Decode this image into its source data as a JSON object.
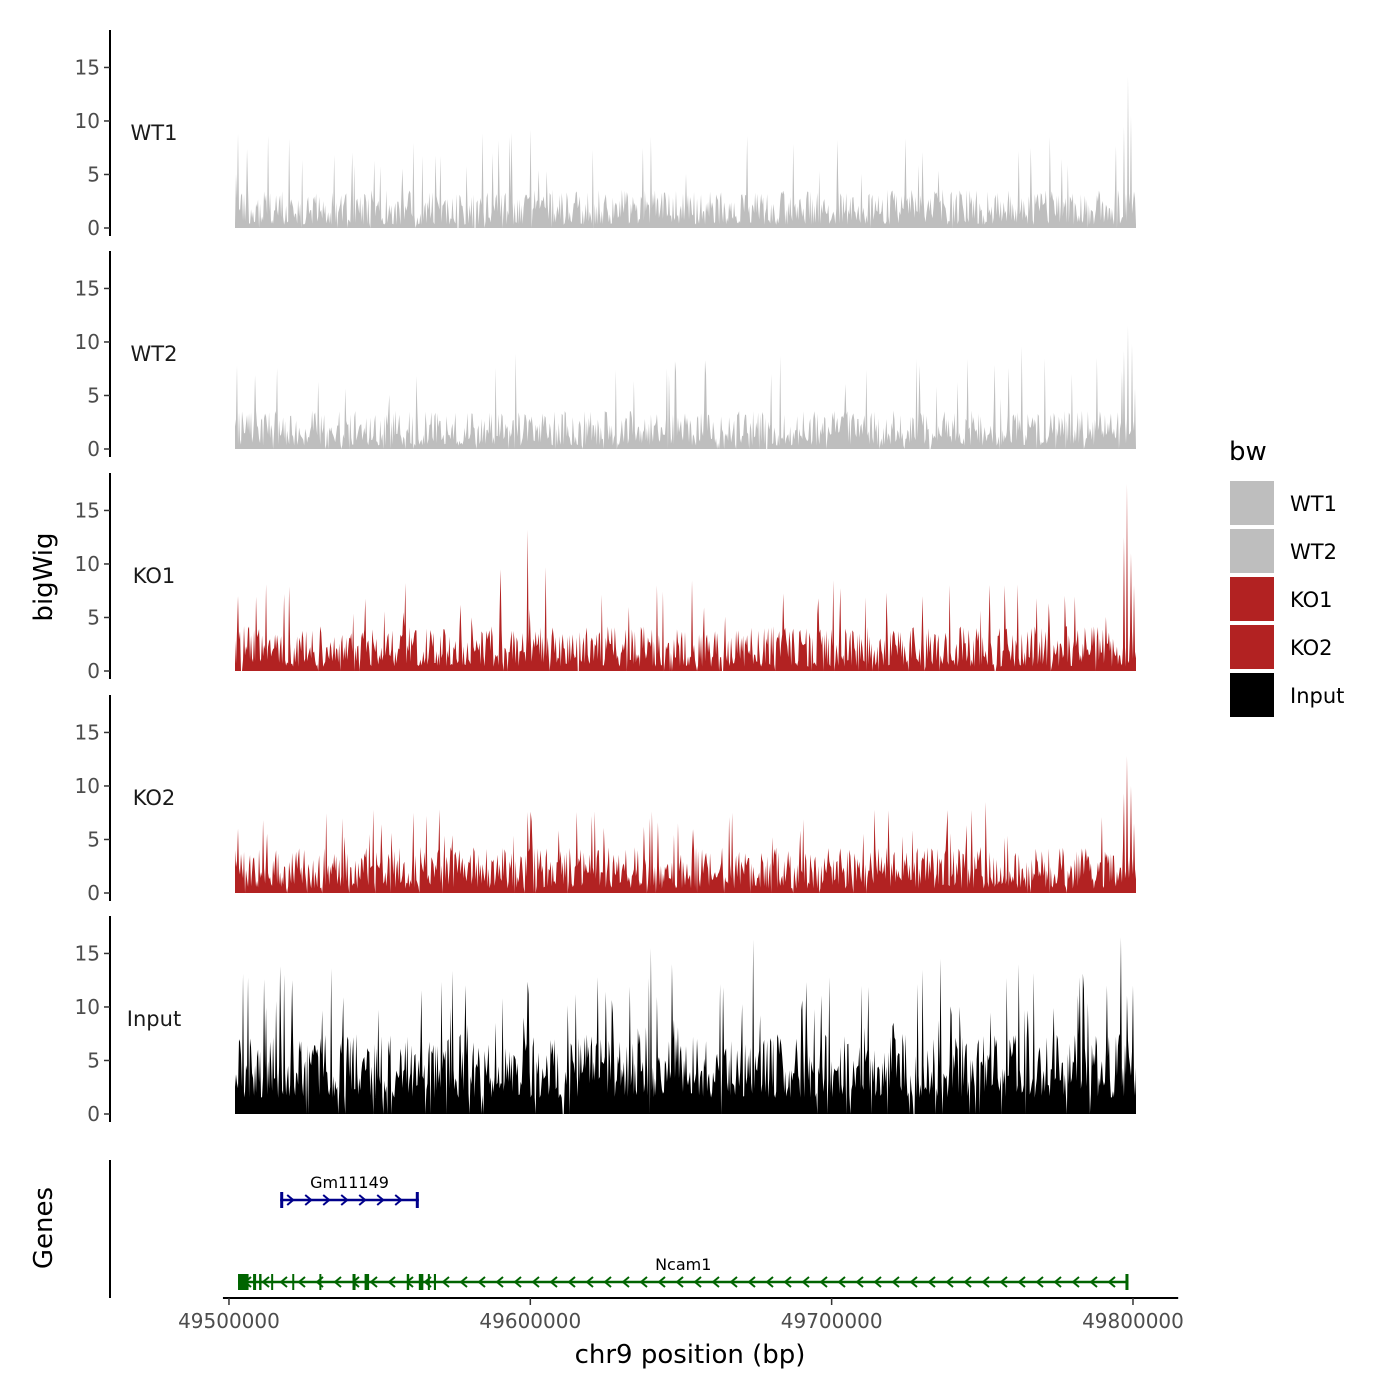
{
  "chart_data": {
    "type": "area",
    "title": "",
    "xlabel": "chr9 position (bp)",
    "ylabel": "bigWig",
    "genes_label": "Genes",
    "xlim": [
      49498000,
      49815000
    ],
    "x_ticks": [
      49500000,
      49600000,
      49700000,
      49800000
    ],
    "x_tick_labels": [
      "49500000",
      "49600000",
      "49700000",
      "49800000"
    ],
    "ylim": [
      0,
      18.5
    ],
    "y_ticks": [
      0,
      5,
      10,
      15
    ],
    "y_tick_labels": [
      "0",
      "5",
      "10",
      "15"
    ],
    "x_range_data": [
      49502000,
      49801000
    ],
    "legend": {
      "title": "bw",
      "position": "right",
      "entries": [
        {
          "label": "WT1",
          "color": "#bebebe"
        },
        {
          "label": "WT2",
          "color": "#bebebe"
        },
        {
          "label": "KO1",
          "color": "#b22222"
        },
        {
          "label": "KO2",
          "color": "#b22222"
        },
        {
          "label": "Input",
          "color": "#000000"
        }
      ]
    },
    "tracks": [
      {
        "name": "WT1",
        "color": "#bebebe",
        "baseline_range": [
          0.3,
          3.6
        ],
        "spike_rate": 0.045,
        "spike_range": [
          4.5,
          9.0
        ],
        "peaks": [
          {
            "x": 49503000,
            "y": 8.8
          },
          {
            "x": 49600000,
            "y": 9.2
          },
          {
            "x": 49640000,
            "y": 8.5
          },
          {
            "x": 49672000,
            "y": 8.6
          },
          {
            "x": 49702000,
            "y": 8.2
          },
          {
            "x": 49762000,
            "y": 7.2
          },
          {
            "x": 49797000,
            "y": 9.5
          },
          {
            "x": 49798500,
            "y": 14.2
          },
          {
            "x": 49799500,
            "y": 10.5
          }
        ]
      },
      {
        "name": "WT2",
        "color": "#bebebe",
        "baseline_range": [
          0.3,
          3.6
        ],
        "spike_rate": 0.045,
        "spike_range": [
          4.5,
          8.6
        ],
        "peaks": [
          {
            "x": 49502500,
            "y": 7.8
          },
          {
            "x": 49595000,
            "y": 8.9
          },
          {
            "x": 49648000,
            "y": 8.2
          },
          {
            "x": 49683000,
            "y": 8.7
          },
          {
            "x": 49728000,
            "y": 8.4
          },
          {
            "x": 49763000,
            "y": 9.6
          },
          {
            "x": 49797000,
            "y": 9.2
          },
          {
            "x": 49798500,
            "y": 11.5
          },
          {
            "x": 49799800,
            "y": 9.8
          }
        ]
      },
      {
        "name": "KO1",
        "color": "#b22222",
        "baseline_range": [
          0.4,
          4.2
        ],
        "spike_rate": 0.05,
        "spike_range": [
          5.0,
          8.5
        ],
        "peaks": [
          {
            "x": 49503000,
            "y": 7.0
          },
          {
            "x": 49520000,
            "y": 7.9
          },
          {
            "x": 49590000,
            "y": 9.5
          },
          {
            "x": 49599000,
            "y": 13.2
          },
          {
            "x": 49605000,
            "y": 9.7
          },
          {
            "x": 49642000,
            "y": 8.0
          },
          {
            "x": 49730000,
            "y": 7.0
          },
          {
            "x": 49768000,
            "y": 6.8
          },
          {
            "x": 49797000,
            "y": 12.5
          },
          {
            "x": 49798000,
            "y": 17.5
          },
          {
            "x": 49799200,
            "y": 11.0
          },
          {
            "x": 49800500,
            "y": 8.0
          }
        ]
      },
      {
        "name": "KO2",
        "color": "#b22222",
        "baseline_range": [
          0.4,
          4.3
        ],
        "spike_rate": 0.05,
        "spike_range": [
          5.0,
          7.8
        ],
        "peaks": [
          {
            "x": 49503000,
            "y": 6.0
          },
          {
            "x": 49570000,
            "y": 7.8
          },
          {
            "x": 49600000,
            "y": 7.6
          },
          {
            "x": 49667000,
            "y": 7.5
          },
          {
            "x": 49751000,
            "y": 8.5
          },
          {
            "x": 49797000,
            "y": 9.3
          },
          {
            "x": 49798000,
            "y": 12.8
          },
          {
            "x": 49799200,
            "y": 10.0
          },
          {
            "x": 49800500,
            "y": 6.5
          }
        ]
      },
      {
        "name": "Input",
        "color": "#000000",
        "baseline_range": [
          1.5,
          7.5
        ],
        "spike_rate": 0.08,
        "spike_range": [
          8.0,
          13.5
        ],
        "peaks": [
          {
            "x": 49517000,
            "y": 13.8
          },
          {
            "x": 49534000,
            "y": 13.6
          },
          {
            "x": 49640000,
            "y": 15.5
          },
          {
            "x": 49647000,
            "y": 14.0
          },
          {
            "x": 49674000,
            "y": 16.3
          },
          {
            "x": 49736000,
            "y": 14.5
          },
          {
            "x": 49762000,
            "y": 14.0
          },
          {
            "x": 49796000,
            "y": 16.5
          },
          {
            "x": 49800000,
            "y": 12.0
          }
        ]
      }
    ],
    "genes": [
      {
        "name": "Gm11149",
        "color": "#00008b",
        "strand": "+",
        "start": 49517000,
        "end": 49563000,
        "row": 1,
        "exons": [
          [
            49517000,
            49518000
          ],
          [
            49562000,
            49563000
          ]
        ]
      },
      {
        "name": "Ncam1",
        "color": "#006400",
        "strand": "-",
        "start": 49503000,
        "end": 49798500,
        "row": 2,
        "exons": [
          [
            49503000,
            49506500
          ],
          [
            49508000,
            49509000
          ],
          [
            49510000,
            49510800
          ],
          [
            49514000,
            49514600
          ],
          [
            49521000,
            49521600
          ],
          [
            49530000,
            49530600
          ],
          [
            49541000,
            49542000
          ],
          [
            49545000,
            49546500
          ],
          [
            49559000,
            49559800
          ],
          [
            49563000,
            49564500
          ],
          [
            49566000,
            49566600
          ],
          [
            49568000,
            49568700
          ],
          [
            49797500,
            49798500
          ]
        ]
      }
    ]
  }
}
